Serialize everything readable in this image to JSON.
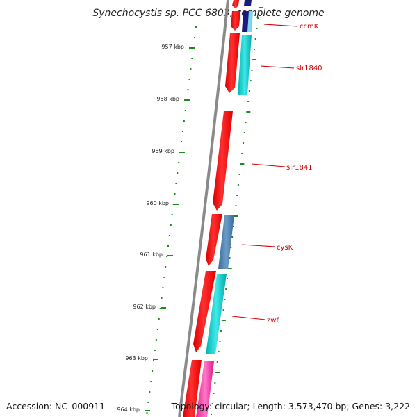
{
  "title": "Synechocystis sp. PCC 6803, complete genome",
  "ruler": {
    "ticks": [
      "957 kbp",
      "958 kbp",
      "959 kbp",
      "960 kbp",
      "961 kbp",
      "962 kbp",
      "963 kbp",
      "964 kbp"
    ]
  },
  "genes": [
    {
      "name": "ccmK",
      "color": "#1d57a8"
    },
    {
      "name": "slr1840",
      "color": "#00c8c8"
    },
    {
      "name": "slr1841",
      "color": "#ff0000"
    },
    {
      "name": "cysK",
      "color": "#4a7fb0"
    },
    {
      "name": "zwf",
      "color": "#00c8c8"
    }
  ],
  "colors": {
    "backbone": "#8a8a8a",
    "forward_strand": "#ff0000",
    "cds_cyan": "#00c8c8",
    "cds_blue": "#4a7fb0",
    "cds_navy": "#1a1a80",
    "cds_magenta": "#ff3fae",
    "ruler": "#1e8a1e",
    "label": "#cc0000"
  },
  "footer": {
    "accession": "Accession: NC_000911",
    "summary": "Topology: circular; Length: 3,573,470 bp; Genes: 3,222"
  }
}
